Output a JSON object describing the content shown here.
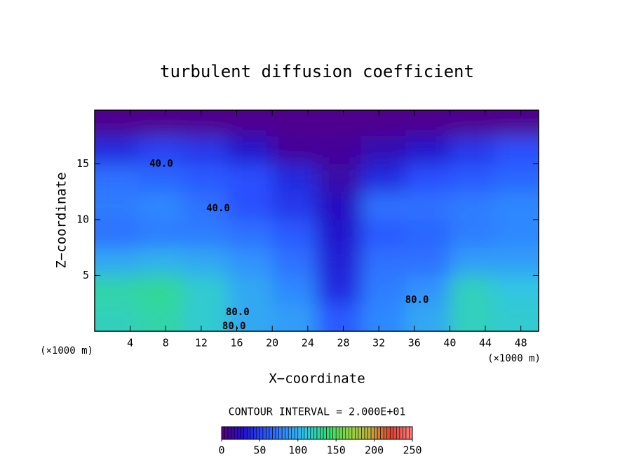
{
  "chart_data": {
    "type": "heatmap",
    "title": "turbulent diffusion coefficient",
    "xlabel": "X−coordinate",
    "ylabel": "Z−coordinate",
    "x_unit_label_left": "(×1000 m)",
    "x_unit_label_right": "(×1000 m)",
    "xlim": [
      0,
      50
    ],
    "ylim": [
      0,
      19.8
    ],
    "xticks": [
      4,
      8,
      12,
      16,
      20,
      24,
      28,
      32,
      36,
      40,
      44,
      48
    ],
    "yticks": [
      5,
      10,
      15
    ],
    "x_edges": [
      0,
      5,
      10,
      15,
      20,
      25,
      30,
      35,
      40,
      45,
      50
    ],
    "y_edges": [
      0,
      2.5,
      5,
      7.5,
      10,
      12.5,
      15,
      17.5,
      19.8
    ],
    "z": [
      [
        120,
        125,
        115,
        95,
        90,
        60,
        80,
        95,
        120,
        115
      ],
      [
        125,
        130,
        115,
        95,
        80,
        40,
        75,
        85,
        120,
        110
      ],
      [
        95,
        100,
        95,
        85,
        70,
        35,
        70,
        70,
        90,
        90
      ],
      [
        70,
        75,
        75,
        70,
        60,
        30,
        60,
        65,
        75,
        80
      ],
      [
        75,
        80,
        70,
        55,
        45,
        25,
        70,
        70,
        75,
        80
      ],
      [
        70,
        65,
        60,
        55,
        40,
        15,
        40,
        55,
        60,
        65
      ],
      [
        40,
        50,
        45,
        30,
        10,
        10,
        20,
        30,
        45,
        55
      ],
      [
        5,
        5,
        5,
        5,
        5,
        5,
        5,
        5,
        5,
        5
      ]
    ],
    "contour_labels": [
      {
        "value": 40,
        "label": "40.0",
        "x": 7.5,
        "y": 15.0
      },
      {
        "value": 40,
        "label": "40.0",
        "x": 13.9,
        "y": 11.0
      },
      {
        "value": 80,
        "label": "80.0",
        "x": 16.1,
        "y": 1.7
      },
      {
        "value": 80,
        "label": "80.0",
        "x": 15.7,
        "y": 0.45
      },
      {
        "value": 80,
        "label": "80.0",
        "x": 36.3,
        "y": 2.8
      }
    ],
    "contour_interval_text": "CONTOUR INTERVAL = 2.000E+01",
    "colormap": [
      "#5a0080",
      "#2010c8",
      "#2a50ff",
      "#3090ff",
      "#30c8e0",
      "#30e070",
      "#90d840",
      "#c0b040",
      "#e04030",
      "#ff8080"
    ],
    "clim": [
      0,
      250
    ],
    "colorbar_ticks": [
      0,
      50,
      100,
      150,
      200,
      250
    ]
  }
}
